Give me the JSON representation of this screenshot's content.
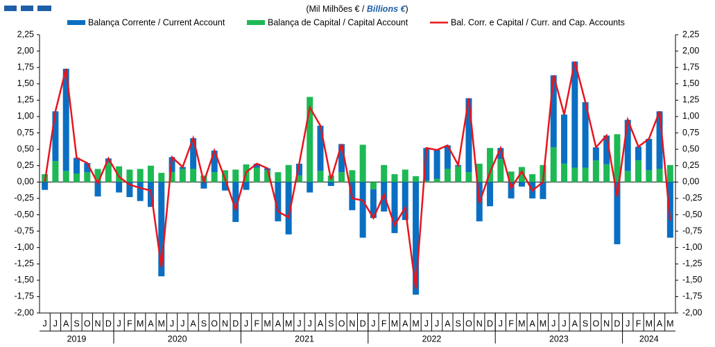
{
  "chart_data": {
    "type": "bar-line",
    "subtitle": [
      "(Mil Milhões  € / ",
      "Billions €",
      ")"
    ],
    "years": [
      {
        "year": "2019",
        "months": [
          "J",
          "J",
          "A",
          "S",
          "O",
          "N",
          "D"
        ]
      },
      {
        "year": "2020",
        "months": [
          "J",
          "F",
          "M",
          "A",
          "M",
          "J",
          "J",
          "A",
          "S",
          "O",
          "N",
          "D"
        ]
      },
      {
        "year": "2021",
        "months": [
          "J",
          "F",
          "M",
          "A",
          "M",
          "J",
          "J",
          "A",
          "S",
          "O",
          "N",
          "D"
        ]
      },
      {
        "year": "2022",
        "months": [
          "J",
          "F",
          "M",
          "A",
          "M",
          "J",
          "J",
          "A",
          "S",
          "O",
          "N",
          "D"
        ]
      },
      {
        "year": "2023",
        "months": [
          "J",
          "F",
          "M",
          "A",
          "M",
          "J",
          "J",
          "A",
          "S",
          "O",
          "N",
          "D"
        ]
      },
      {
        "year": "2024",
        "months": [
          "J",
          "F",
          "M",
          "A",
          "M"
        ]
      }
    ],
    "series": [
      {
        "name": "Balança Corrente / Current Account",
        "color": "#0a6fc2",
        "kind": "bar",
        "values": [
          -0.12,
          0.76,
          1.56,
          0.24,
          0.14,
          -0.22,
          0.06,
          -0.16,
          -0.23,
          -0.29,
          -0.38,
          -1.44,
          0.23,
          0.03,
          0.47,
          -0.1,
          0.33,
          -0.13,
          -0.61,
          -0.12,
          0.06,
          0.03,
          -0.6,
          -0.8,
          0.18,
          -0.16,
          0.69,
          -0.06,
          0.43,
          -0.43,
          -0.85,
          -0.44,
          -0.45,
          -0.78,
          -0.58,
          -1.72,
          0.5,
          0.44,
          0.36,
          0.02,
          1.13,
          -0.6,
          -0.37,
          0.17,
          -0.25,
          -0.07,
          -0.25,
          -0.26,
          1.1,
          0.75,
          1.62,
          1.0,
          0.2,
          0.44,
          -0.95,
          0.78,
          0.21,
          0.48,
          0.88,
          -0.85
        ]
      },
      {
        "name": "Balança de Capital / Capital Account",
        "color": "#1db954",
        "kind": "bar",
        "values": [
          0.12,
          0.32,
          0.17,
          0.13,
          0.15,
          0.2,
          0.3,
          0.24,
          0.19,
          0.2,
          0.25,
          0.14,
          0.15,
          0.2,
          0.2,
          0.1,
          0.15,
          0.18,
          0.19,
          0.27,
          0.22,
          0.18,
          0.15,
          0.26,
          0.1,
          1.3,
          0.17,
          0.1,
          0.15,
          0.18,
          0.57,
          -0.11,
          0.26,
          0.12,
          0.19,
          0.09,
          0.02,
          0.05,
          0.2,
          0.24,
          0.15,
          0.28,
          0.52,
          0.35,
          0.16,
          0.23,
          0.12,
          0.26,
          0.53,
          0.28,
          0.22,
          0.22,
          0.33,
          0.27,
          0.73,
          0.17,
          0.33,
          0.18,
          0.2,
          0.26
        ]
      },
      {
        "name": "Bal. Corr. e Capital / Curr. and Cap. Accounts",
        "color": "#e8141c",
        "kind": "line",
        "values": [
          0.0,
          1.08,
          1.73,
          0.37,
          0.29,
          -0.02,
          0.36,
          0.08,
          -0.04,
          -0.09,
          -0.13,
          -1.3,
          0.38,
          0.23,
          0.67,
          0.0,
          0.48,
          0.05,
          -0.42,
          0.15,
          0.28,
          0.21,
          -0.45,
          -0.54,
          0.28,
          1.14,
          0.86,
          0.04,
          0.58,
          -0.25,
          -0.28,
          -0.55,
          -0.19,
          -0.66,
          -0.39,
          -1.63,
          0.52,
          0.49,
          0.56,
          0.26,
          1.28,
          -0.32,
          0.15,
          0.52,
          -0.09,
          0.16,
          -0.13,
          0.0,
          1.63,
          1.03,
          1.84,
          1.22,
          0.53,
          0.71,
          -0.22,
          0.95,
          0.54,
          0.66,
          1.08,
          -0.59
        ]
      }
    ],
    "ylim": [
      -2,
      2.25
    ],
    "yticks": [
      {
        "value": -2,
        "label": "-2,00"
      },
      {
        "value": -1.75,
        "label": "-1,75"
      },
      {
        "value": -1.5,
        "label": "-1,50"
      },
      {
        "value": -1.25,
        "label": "-1,25"
      },
      {
        "value": -1,
        "label": "-1,00"
      },
      {
        "value": -0.75,
        "label": "-0,75"
      },
      {
        "value": -0.5,
        "label": "-0,50"
      },
      {
        "value": -0.25,
        "label": "-0,25"
      },
      {
        "value": 0,
        "label": "0,00"
      },
      {
        "value": 0.25,
        "label": "0,25"
      },
      {
        "value": 0.5,
        "label": "0,50"
      },
      {
        "value": 0.75,
        "label": "0,75"
      },
      {
        "value": 1,
        "label": "1,00"
      },
      {
        "value": 1.25,
        "label": "1,25"
      },
      {
        "value": 1.5,
        "label": "1,50"
      },
      {
        "value": 1.75,
        "label": "1,75"
      },
      {
        "value": 2,
        "label": "2,00"
      },
      {
        "value": 2.25,
        "label": "2,25"
      }
    ]
  }
}
